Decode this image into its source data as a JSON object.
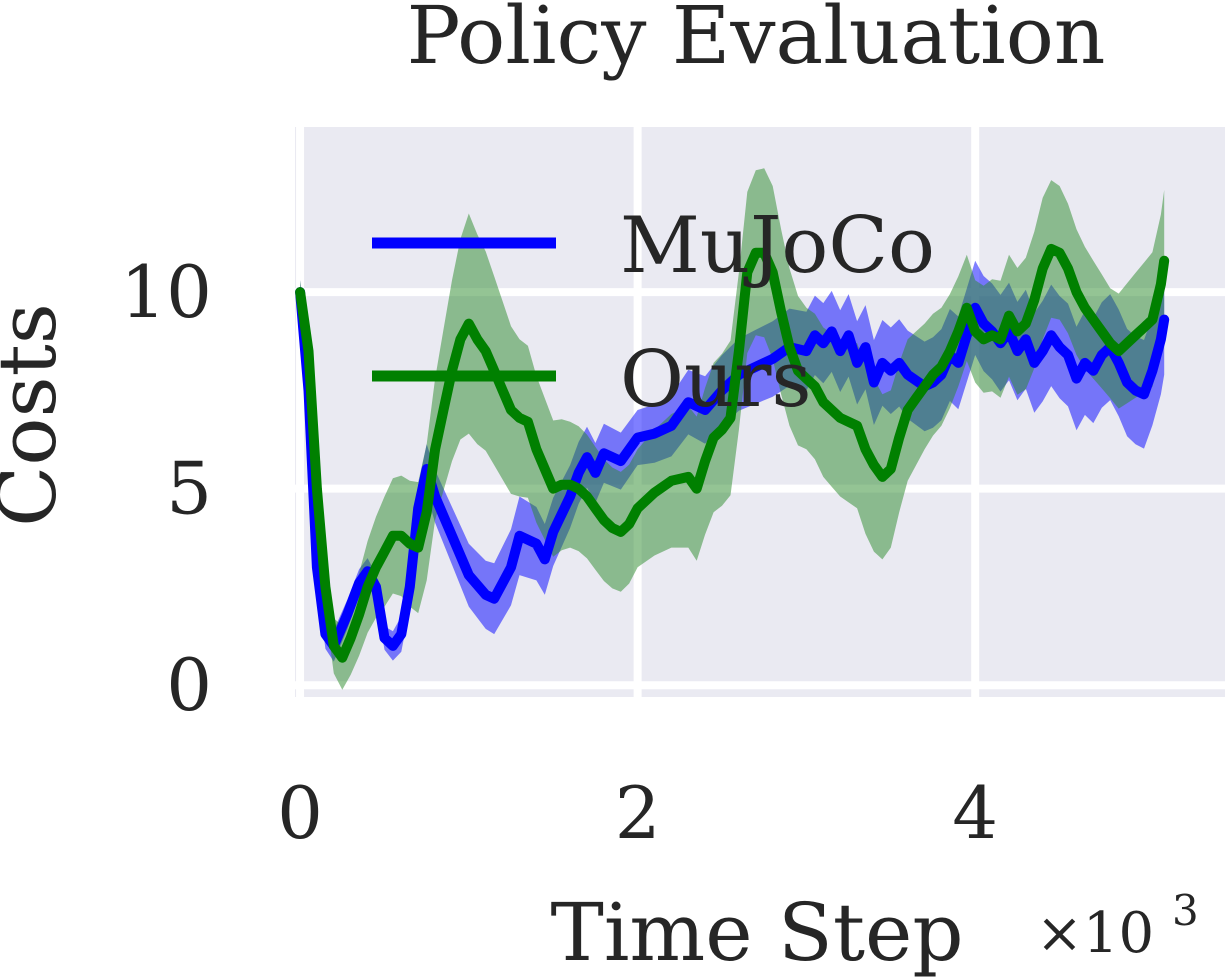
{
  "chart_data": {
    "type": "line",
    "title": "Policy Evaluation",
    "xlabel": "Time Step",
    "x_multiplier": "×10",
    "x_multiplier_exp": "3",
    "ylabel": "Costs",
    "xlim": [
      -0.03,
      5.48
    ],
    "ylim": [
      -0.3,
      14.2
    ],
    "xticks": [
      0,
      2,
      4
    ],
    "yticks": [
      0,
      5,
      10
    ],
    "grid": true,
    "legend_position": "upper-left",
    "series": [
      {
        "name": "MuJoCo",
        "color": "#0000ff",
        "band_color": "#0000ff",
        "points": [
          [
            0.0,
            10.0
          ],
          [
            0.05,
            7.5
          ],
          [
            0.1,
            3.0
          ],
          [
            0.15,
            1.3
          ],
          [
            0.2,
            1.0
          ],
          [
            0.28,
            1.8
          ],
          [
            0.35,
            2.6
          ],
          [
            0.4,
            2.9
          ],
          [
            0.45,
            2.5
          ],
          [
            0.5,
            1.2
          ],
          [
            0.55,
            1.0
          ],
          [
            0.6,
            1.3
          ],
          [
            0.65,
            2.5
          ],
          [
            0.7,
            4.5
          ],
          [
            0.75,
            5.5
          ],
          [
            0.8,
            4.8
          ],
          [
            0.9,
            3.8
          ],
          [
            1.0,
            2.8
          ],
          [
            1.1,
            2.3
          ],
          [
            1.15,
            2.2
          ],
          [
            1.25,
            3.0
          ],
          [
            1.3,
            3.8
          ],
          [
            1.4,
            3.6
          ],
          [
            1.45,
            3.2
          ],
          [
            1.5,
            3.9
          ],
          [
            1.6,
            4.8
          ],
          [
            1.65,
            5.4
          ],
          [
            1.7,
            5.8
          ],
          [
            1.75,
            5.4
          ],
          [
            1.8,
            5.9
          ],
          [
            1.9,
            5.7
          ],
          [
            2.0,
            6.3
          ],
          [
            2.1,
            6.4
          ],
          [
            2.2,
            6.6
          ],
          [
            2.3,
            7.2
          ],
          [
            2.4,
            7.0
          ],
          [
            2.5,
            7.5
          ],
          [
            2.6,
            7.9
          ],
          [
            2.7,
            8.1
          ],
          [
            2.8,
            8.3
          ],
          [
            2.9,
            8.6
          ],
          [
            3.0,
            8.5
          ],
          [
            3.05,
            8.9
          ],
          [
            3.1,
            8.7
          ],
          [
            3.15,
            9.0
          ],
          [
            3.2,
            8.5
          ],
          [
            3.25,
            8.9
          ],
          [
            3.3,
            8.2
          ],
          [
            3.35,
            8.6
          ],
          [
            3.4,
            7.7
          ],
          [
            3.45,
            8.2
          ],
          [
            3.5,
            8.0
          ],
          [
            3.55,
            8.2
          ],
          [
            3.6,
            7.9
          ],
          [
            3.7,
            7.6
          ],
          [
            3.75,
            7.7
          ],
          [
            3.8,
            7.9
          ],
          [
            3.85,
            8.4
          ],
          [
            3.9,
            8.2
          ],
          [
            4.0,
            9.6
          ],
          [
            4.05,
            9.2
          ],
          [
            4.1,
            9.0
          ],
          [
            4.15,
            8.7
          ],
          [
            4.2,
            9.0
          ],
          [
            4.25,
            8.5
          ],
          [
            4.3,
            8.8
          ],
          [
            4.35,
            8.2
          ],
          [
            4.4,
            8.5
          ],
          [
            4.45,
            8.9
          ],
          [
            4.5,
            8.6
          ],
          [
            4.55,
            8.4
          ],
          [
            4.6,
            7.8
          ],
          [
            4.65,
            8.2
          ],
          [
            4.7,
            8.0
          ],
          [
            4.75,
            8.4
          ],
          [
            4.8,
            8.6
          ],
          [
            4.85,
            8.2
          ],
          [
            4.9,
            7.7
          ],
          [
            4.95,
            7.5
          ],
          [
            5.0,
            7.4
          ],
          [
            5.05,
            8.0
          ],
          [
            5.1,
            8.8
          ],
          [
            5.12,
            9.3
          ]
        ],
        "band_halfwidth": [
          [
            0.0,
            0.3
          ],
          [
            0.2,
            0.4
          ],
          [
            0.5,
            0.3
          ],
          [
            0.7,
            0.6
          ],
          [
            1.0,
            0.8
          ],
          [
            1.3,
            1.0
          ],
          [
            1.6,
            0.8
          ],
          [
            2.0,
            0.7
          ],
          [
            2.5,
            0.9
          ],
          [
            3.0,
            1.0
          ],
          [
            3.5,
            1.1
          ],
          [
            4.0,
            1.2
          ],
          [
            4.5,
            1.3
          ],
          [
            5.12,
            1.4
          ]
        ]
      },
      {
        "name": "Ours",
        "color": "#008000",
        "band_color": "#2a8a2a",
        "points": [
          [
            0.0,
            10.0
          ],
          [
            0.05,
            8.5
          ],
          [
            0.1,
            5.0
          ],
          [
            0.15,
            2.5
          ],
          [
            0.2,
            1.0
          ],
          [
            0.25,
            0.7
          ],
          [
            0.3,
            1.2
          ],
          [
            0.35,
            1.8
          ],
          [
            0.4,
            2.5
          ],
          [
            0.45,
            3.0
          ],
          [
            0.5,
            3.4
          ],
          [
            0.55,
            3.8
          ],
          [
            0.6,
            3.8
          ],
          [
            0.65,
            3.6
          ],
          [
            0.7,
            3.5
          ],
          [
            0.75,
            4.4
          ],
          [
            0.8,
            6.0
          ],
          [
            0.85,
            7.0
          ],
          [
            0.9,
            8.0
          ],
          [
            0.95,
            8.8
          ],
          [
            1.0,
            9.2
          ],
          [
            1.05,
            8.8
          ],
          [
            1.1,
            8.5
          ],
          [
            1.15,
            8.0
          ],
          [
            1.2,
            7.5
          ],
          [
            1.25,
            7.0
          ],
          [
            1.3,
            6.8
          ],
          [
            1.35,
            6.7
          ],
          [
            1.4,
            6.0
          ],
          [
            1.45,
            5.5
          ],
          [
            1.5,
            5.0
          ],
          [
            1.55,
            5.1
          ],
          [
            1.6,
            5.1
          ],
          [
            1.65,
            5.0
          ],
          [
            1.7,
            4.8
          ],
          [
            1.75,
            4.5
          ],
          [
            1.8,
            4.2
          ],
          [
            1.85,
            4.0
          ],
          [
            1.9,
            3.9
          ],
          [
            1.95,
            4.1
          ],
          [
            2.0,
            4.5
          ],
          [
            2.1,
            4.9
          ],
          [
            2.2,
            5.2
          ],
          [
            2.3,
            5.3
          ],
          [
            2.35,
            5.0
          ],
          [
            2.4,
            5.7
          ],
          [
            2.45,
            6.3
          ],
          [
            2.5,
            6.5
          ],
          [
            2.55,
            6.8
          ],
          [
            2.6,
            8.5
          ],
          [
            2.65,
            10.5
          ],
          [
            2.7,
            11.0
          ],
          [
            2.75,
            11.0
          ],
          [
            2.8,
            10.5
          ],
          [
            2.85,
            9.5
          ],
          [
            2.9,
            8.6
          ],
          [
            2.95,
            8.0
          ],
          [
            3.0,
            7.8
          ],
          [
            3.05,
            7.6
          ],
          [
            3.1,
            7.2
          ],
          [
            3.15,
            7.0
          ],
          [
            3.2,
            6.8
          ],
          [
            3.25,
            6.7
          ],
          [
            3.3,
            6.6
          ],
          [
            3.35,
            6.0
          ],
          [
            3.4,
            5.6
          ],
          [
            3.45,
            5.3
          ],
          [
            3.5,
            5.5
          ],
          [
            3.55,
            6.3
          ],
          [
            3.6,
            7.0
          ],
          [
            3.65,
            7.3
          ],
          [
            3.7,
            7.6
          ],
          [
            3.75,
            7.9
          ],
          [
            3.8,
            8.1
          ],
          [
            3.85,
            8.5
          ],
          [
            3.9,
            9.0
          ],
          [
            3.95,
            9.6
          ],
          [
            4.0,
            9.0
          ],
          [
            4.05,
            8.8
          ],
          [
            4.1,
            8.9
          ],
          [
            4.15,
            8.8
          ],
          [
            4.2,
            9.4
          ],
          [
            4.25,
            9.0
          ],
          [
            4.3,
            9.2
          ],
          [
            4.35,
            9.8
          ],
          [
            4.4,
            10.6
          ],
          [
            4.45,
            11.1
          ],
          [
            4.5,
            11.0
          ],
          [
            4.55,
            10.6
          ],
          [
            4.6,
            10.0
          ],
          [
            4.65,
            9.6
          ],
          [
            4.7,
            9.3
          ],
          [
            4.75,
            9.0
          ],
          [
            4.8,
            8.7
          ],
          [
            4.85,
            8.5
          ],
          [
            4.9,
            8.7
          ],
          [
            4.95,
            8.9
          ],
          [
            5.0,
            9.1
          ],
          [
            5.05,
            9.3
          ],
          [
            5.1,
            10.2
          ],
          [
            5.12,
            10.8
          ]
        ],
        "band_halfwidth": [
          [
            0.0,
            0.3
          ],
          [
            0.2,
            0.7
          ],
          [
            0.5,
            1.4
          ],
          [
            0.8,
            1.8
          ],
          [
            1.0,
            2.8
          ],
          [
            1.3,
            2.0
          ],
          [
            1.6,
            1.6
          ],
          [
            2.0,
            1.5
          ],
          [
            2.3,
            1.8
          ],
          [
            2.6,
            2.0
          ],
          [
            2.8,
            2.2
          ],
          [
            3.0,
            1.8
          ],
          [
            3.4,
            2.2
          ],
          [
            3.7,
            1.6
          ],
          [
            4.0,
            1.3
          ],
          [
            4.4,
            1.8
          ],
          [
            4.8,
            1.4
          ],
          [
            5.12,
            1.8
          ]
        ]
      }
    ]
  }
}
